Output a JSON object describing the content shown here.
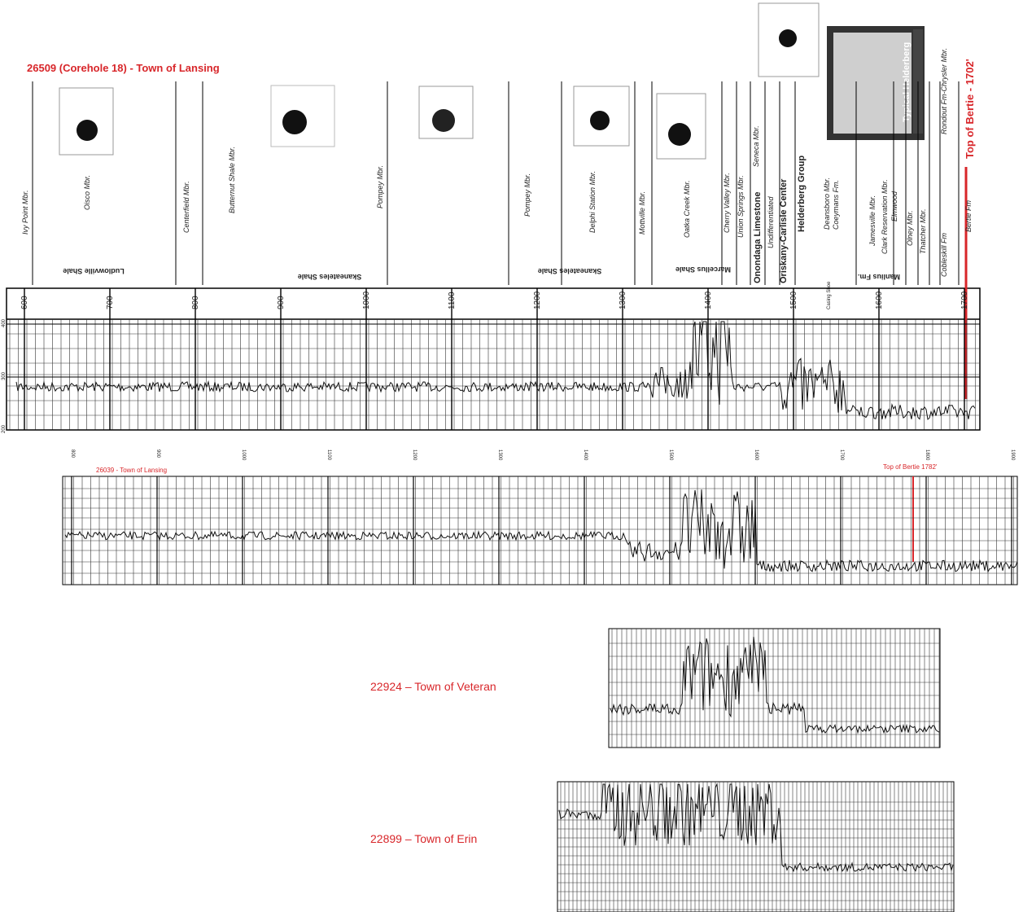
{
  "log_1": {
    "title": "26509 (Corehole 18) - Town of Lansing",
    "formations": [
      "Ivy Point Mbr.",
      "Oisco Mbr.",
      "Centerfield Mbr.",
      "Butternut Shale Mbr.",
      "Pompey Mbr.",
      "Pompey Mbr.",
      "Delphi Station Mbr.",
      "Mottville Mbr.",
      "Oatka Creek Mbr.",
      "Cherry Valley Mbr.",
      "Union Springs Mbr.",
      "Seneca Mbr.",
      "Undifferentiated",
      "Deansboro Mbr.",
      "Coeymans Fm.",
      "Jamesville Mbr.",
      "Clark Reservation Mbr.",
      "Elmwood",
      "Olney Mbr.",
      "Thatcher Mbr.",
      "Cobleskill Fm",
      "Rondout Fm-Chrysler Mbr.",
      "Bertie Fm"
    ],
    "groups": [
      "Onondaga Limestone",
      "Oriskany-Carlisle Center",
      "Helderberg Group"
    ],
    "shale_units": [
      "Ludlowville Shale",
      "Skaneateles Shale",
      "Skaneateles Shale",
      "Marcellus Shale",
      "Manlius Fm."
    ],
    "core_photo_label": "Typical Helderberg",
    "marker": "Top of Bertie - 1702'",
    "casing_shoe": "Casing Shoe",
    "depth_ticks": [
      600,
      700,
      800,
      900,
      1000,
      1100,
      1200,
      1300,
      1400,
      1500,
      1600,
      1700
    ],
    "value_ticks": [
      400,
      300,
      200
    ]
  },
  "log_2": {
    "title": "26039 - Town of Lansing",
    "marker": "Top of Bertie  1782'",
    "depth_ticks": [
      800,
      900,
      1000,
      1100,
      1200,
      1300,
      1400,
      1500,
      1600,
      1700,
      1800,
      1900
    ]
  },
  "log_3": {
    "title": "22924 – Town of Veteran"
  },
  "log_4": {
    "title": "22899 – Town of Erin"
  }
}
